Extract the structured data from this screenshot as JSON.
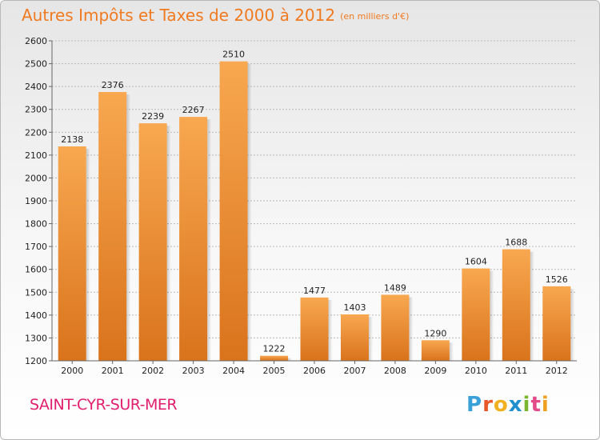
{
  "header": {
    "title": "Autres Impôts et Taxes de 2000 à 2012",
    "unit": "(en milliers d'€)"
  },
  "footer": {
    "city": "SAINT-CYR-SUR-MER",
    "logo_text": "Proxiti",
    "logo_colors": [
      "#3aa0d8",
      "#e8562a",
      "#f0b020",
      "#1f8fd0",
      "#7ab62e",
      "#e24a8a",
      "#f0a020"
    ]
  },
  "colors": {
    "bar_light": "#f8a850",
    "bar_dark": "#d9731c",
    "grid": "#b9b9b9",
    "axis": "#666666",
    "text": "#222222"
  },
  "chart_data": {
    "type": "bar",
    "title": "Autres Impôts et Taxes de 2000 à 2012",
    "categories": [
      "2000",
      "2001",
      "2002",
      "2003",
      "2004",
      "2005",
      "2006",
      "2007",
      "2008",
      "2009",
      "2010",
      "2011",
      "2012"
    ],
    "values": [
      2138,
      2376,
      2239,
      2267,
      2510,
      1222,
      1477,
      1403,
      1489,
      1290,
      1604,
      1688,
      1526
    ],
    "ylim": [
      1200,
      2600
    ],
    "yticks": [
      1200,
      1300,
      1400,
      1500,
      1600,
      1700,
      1800,
      1900,
      2000,
      2100,
      2200,
      2300,
      2400,
      2500,
      2600
    ],
    "grid": true,
    "data_labels": true,
    "legend": "none"
  }
}
